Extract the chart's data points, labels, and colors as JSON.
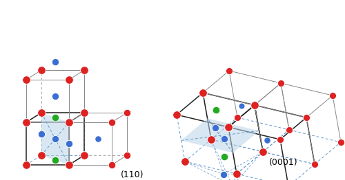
{
  "fig_width": 5.0,
  "fig_height": 2.62,
  "dpi": 100,
  "bg_color": "#ffffff",
  "label_110": "(110)",
  "label_0001": "(0001)",
  "label_fontsize": 9,
  "atom_red": "#dd2222",
  "atom_blue": "#3a6ed4",
  "atom_green": "#22aa22",
  "plane_color": "#b8d4e8",
  "plane_alpha": 0.55,
  "edge_solid": "#222222",
  "edge_gray": "#888888",
  "edge_dashed": "#6699cc",
  "lw_solid": 1.1,
  "lw_gray": 0.7,
  "lw_dashed": 0.7,
  "sz_red": 70,
  "sz_blue": 55,
  "sz_green": 58
}
